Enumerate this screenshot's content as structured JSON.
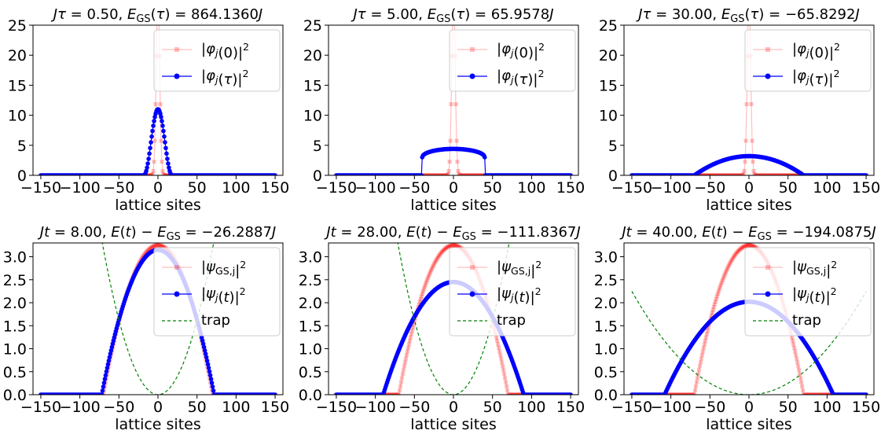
{
  "chart_data": [
    {
      "type": "line",
      "title": "Jτ = 0.50,  E_GS(τ) = 864.1360J",
      "xlabel": "lattice sites",
      "ylabel": "",
      "xlim": [
        -160,
        160
      ],
      "ylim": [
        0,
        25
      ],
      "xticks": [
        -150,
        -100,
        -50,
        0,
        50,
        100,
        150
      ],
      "xtick_labels": [
        "−150",
        "−100",
        "−50",
        "0",
        "50",
        "100",
        "150"
      ],
      "yticks": [
        0,
        5,
        10,
        15,
        20,
        25
      ],
      "ytick_labels": [
        "0",
        "5",
        "10",
        "15",
        "20",
        "25"
      ],
      "legend": "top-right",
      "grid": false,
      "series": [
        {
          "name": "|φ_j(0)|²",
          "color": "#ff0000",
          "alpha": 0.25,
          "marker": "square",
          "profile": "gaussian",
          "x_range": [
            -150,
            150
          ],
          "peak": 30,
          "sigma": 2.2
        },
        {
          "name": "|φ_j(τ)|²",
          "color": "#0000ff",
          "alpha": 1.0,
          "marker": "circle",
          "profile": "cosine",
          "x_range": [
            -150,
            150
          ],
          "peak": 11,
          "half_width": 18
        }
      ]
    },
    {
      "type": "line",
      "title": "Jτ = 5.00,  E_GS(τ) = 65.9578J",
      "xlabel": "lattice sites",
      "ylabel": "",
      "xlim": [
        -160,
        160
      ],
      "ylim": [
        0,
        25
      ],
      "xticks": [
        -150,
        -100,
        -50,
        0,
        50,
        100,
        150
      ],
      "xtick_labels": [
        "−150",
        "−100",
        "−50",
        "0",
        "50",
        "100",
        "150"
      ],
      "yticks": [
        0,
        5,
        10,
        15,
        20,
        25
      ],
      "ytick_labels": [
        "0",
        "5",
        "10",
        "15",
        "20",
        "25"
      ],
      "legend": "top-right",
      "grid": false,
      "series": [
        {
          "name": "|φ_j(0)|²",
          "color": "#ff0000",
          "alpha": 0.25,
          "marker": "square",
          "profile": "gaussian",
          "x_range": [
            -150,
            150
          ],
          "peak": 30,
          "sigma": 2.2
        },
        {
          "name": "|φ_j(τ)|²",
          "color": "#0000ff",
          "alpha": 1.0,
          "marker": "circle",
          "profile": "sqrtcap",
          "x_range": [
            -150,
            150
          ],
          "peak": 4.4,
          "half_width": 40,
          "edge_value": 3.0
        }
      ]
    },
    {
      "type": "line",
      "title": "Jτ = 30.00,  E_GS(τ) = −65.8292J",
      "xlabel": "lattice sites",
      "ylabel": "",
      "xlim": [
        -160,
        160
      ],
      "ylim": [
        0,
        25
      ],
      "xticks": [
        -150,
        -100,
        -50,
        0,
        50,
        100,
        150
      ],
      "xtick_labels": [
        "−150",
        "−100",
        "−50",
        "0",
        "50",
        "100",
        "150"
      ],
      "yticks": [
        0,
        5,
        10,
        15,
        20,
        25
      ],
      "ytick_labels": [
        "0",
        "5",
        "10",
        "15",
        "20",
        "25"
      ],
      "legend": "top-right",
      "grid": false,
      "series": [
        {
          "name": "|φ_j(0)|²",
          "color": "#ff0000",
          "alpha": 0.25,
          "marker": "square",
          "profile": "gaussian",
          "x_range": [
            -150,
            150
          ],
          "peak": 30,
          "sigma": 2.2
        },
        {
          "name": "|φ_j(τ)|²",
          "color": "#0000ff",
          "alpha": 1.0,
          "marker": "circle",
          "profile": "tf",
          "x_range": [
            -150,
            150
          ],
          "peak": 3.2,
          "half_width": 70
        }
      ]
    },
    {
      "type": "line",
      "title": "Jt = 8.00,  E(t) − E_GS = −26.2887J",
      "xlabel": "lattice sites",
      "ylabel": "",
      "xlim": [
        -160,
        160
      ],
      "ylim": [
        0,
        3.3
      ],
      "xticks": [
        -150,
        -100,
        -50,
        0,
        50,
        100,
        150
      ],
      "xtick_labels": [
        "−150",
        "−100",
        "−50",
        "0",
        "50",
        "100",
        "150"
      ],
      "yticks": [
        0,
        0.5,
        1.0,
        1.5,
        2.0,
        2.5,
        3.0
      ],
      "ytick_labels": [
        "0.0",
        "0.5",
        "1.0",
        "1.5",
        "2.0",
        "2.5",
        "3.0"
      ],
      "legend": "top-right",
      "grid": false,
      "series": [
        {
          "name": "|ψ_GS,j|²",
          "color": "#ff0000",
          "alpha": 0.25,
          "marker": "square",
          "profile": "tf",
          "x_range": [
            -150,
            150
          ],
          "peak": 3.25,
          "half_width": 70
        },
        {
          "name": "|ψ_j(t)|²",
          "color": "#0000ff",
          "alpha": 1.0,
          "marker": "circle",
          "profile": "tf",
          "x_range": [
            -150,
            150
          ],
          "peak": 3.15,
          "half_width": 72
        },
        {
          "name": "trap",
          "color": "#008000",
          "alpha": 1.0,
          "marker": "none",
          "dashed": true,
          "profile": "parabola",
          "x_range": [
            -150,
            150
          ],
          "coefficient": 0.00065
        }
      ]
    },
    {
      "type": "line",
      "title": "Jt = 28.00,  E(t) − E_GS = −111.8367J",
      "xlabel": "lattice sites",
      "ylabel": "",
      "xlim": [
        -160,
        160
      ],
      "ylim": [
        0,
        3.3
      ],
      "xticks": [
        -150,
        -100,
        -50,
        0,
        50,
        100,
        150
      ],
      "xtick_labels": [
        "−150",
        "−100",
        "−50",
        "0",
        "50",
        "100",
        "150"
      ],
      "yticks": [
        0,
        0.5,
        1.0,
        1.5,
        2.0,
        2.5,
        3.0
      ],
      "ytick_labels": [
        "0.0",
        "0.5",
        "1.0",
        "1.5",
        "2.0",
        "2.5",
        "3.0"
      ],
      "legend": "top-right",
      "grid": false,
      "series": [
        {
          "name": "|ψ_GS,j|²",
          "color": "#ff0000",
          "alpha": 0.25,
          "marker": "square",
          "profile": "tf",
          "x_range": [
            -150,
            150
          ],
          "peak": 3.25,
          "half_width": 70
        },
        {
          "name": "|ψ_j(t)|²",
          "color": "#0000ff",
          "alpha": 1.0,
          "marker": "circle",
          "profile": "tf",
          "x_range": [
            -150,
            150
          ],
          "peak": 2.45,
          "half_width": 90
        },
        {
          "name": "trap",
          "color": "#008000",
          "alpha": 1.0,
          "marker": "none",
          "dashed": true,
          "profile": "parabola",
          "x_range": [
            -150,
            150
          ],
          "coefficient": 0.00065
        }
      ]
    },
    {
      "type": "line",
      "title": "Jt = 40.00,  E(t) − E_GS = −194.0875J",
      "xlabel": "lattice sites",
      "ylabel": "",
      "xlim": [
        -160,
        160
      ],
      "ylim": [
        0,
        3.3
      ],
      "xticks": [
        -150,
        -100,
        -50,
        0,
        50,
        100,
        150
      ],
      "xtick_labels": [
        "−150",
        "−100",
        "−50",
        "0",
        "50",
        "100",
        "150"
      ],
      "yticks": [
        0,
        0.5,
        1.0,
        1.5,
        2.0,
        2.5,
        3.0
      ],
      "ytick_labels": [
        "0.0",
        "0.5",
        "1.0",
        "1.5",
        "2.0",
        "2.5",
        "3.0"
      ],
      "legend": "top-right",
      "grid": false,
      "series": [
        {
          "name": "|ψ_GS,j|²",
          "color": "#ff0000",
          "alpha": 0.25,
          "marker": "square",
          "profile": "tf",
          "x_range": [
            -150,
            150
          ],
          "peak": 3.25,
          "half_width": 70
        },
        {
          "name": "|ψ_j(t)|²",
          "color": "#0000ff",
          "alpha": 1.0,
          "marker": "circle",
          "profile": "tf",
          "x_range": [
            -150,
            150
          ],
          "peak": 2.02,
          "half_width": 108
        },
        {
          "name": "trap",
          "color": "#008000",
          "alpha": 1.0,
          "marker": "none",
          "dashed": true,
          "profile": "parabola",
          "x_range": [
            -150,
            150
          ],
          "coefficient": 0.0001
        }
      ]
    }
  ]
}
